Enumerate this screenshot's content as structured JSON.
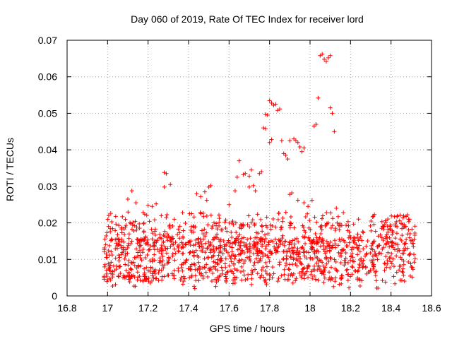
{
  "chart_data": {
    "type": "scatter",
    "title": "Day 060 of 2019, Rate Of TEC Index for receiver lord",
    "xlabel": "GPS time / hours",
    "ylabel": "ROTI / TECUs",
    "xlim": [
      16.8,
      18.6
    ],
    "ylim": [
      0,
      0.07
    ],
    "xticks": [
      "16.8",
      "17",
      "17.2",
      "17.4",
      "17.6",
      "17.8",
      "18",
      "18.2",
      "18.4",
      "18.6"
    ],
    "yticks": [
      "0",
      "0.01",
      "0.02",
      "0.03",
      "0.04",
      "0.05",
      "0.06",
      "0.07"
    ],
    "grid": true,
    "marker": "+",
    "color": "#ff0000",
    "x_range_data": [
      16.98,
      18.52
    ],
    "series": [
      {
        "points": [
          [
            17.28,
            0.0338
          ],
          [
            17.29,
            0.0335
          ],
          [
            17.31,
            0.0305
          ],
          [
            17.28,
            0.0298
          ],
          [
            17.1,
            0.0265
          ],
          [
            17.12,
            0.0288
          ],
          [
            17.14,
            0.0255
          ],
          [
            17.2,
            0.0248
          ],
          [
            17.22,
            0.0245
          ],
          [
            17.24,
            0.0252
          ],
          [
            17.44,
            0.028
          ],
          [
            17.46,
            0.0272
          ],
          [
            17.48,
            0.0285
          ],
          [
            17.5,
            0.0298
          ],
          [
            17.51,
            0.0302
          ],
          [
            17.49,
            0.0262
          ],
          [
            17.6,
            0.025
          ],
          [
            17.63,
            0.0288
          ],
          [
            17.64,
            0.0325
          ],
          [
            17.65,
            0.037
          ],
          [
            17.67,
            0.0332
          ],
          [
            17.68,
            0.0335
          ],
          [
            17.7,
            0.0328
          ],
          [
            17.71,
            0.0345
          ],
          [
            17.7,
            0.0298
          ],
          [
            17.72,
            0.0302
          ],
          [
            17.73,
            0.0288
          ],
          [
            17.75,
            0.0335
          ],
          [
            17.76,
            0.034
          ],
          [
            17.77,
            0.046
          ],
          [
            17.78,
            0.0458
          ],
          [
            17.78,
            0.0497
          ],
          [
            17.79,
            0.0495
          ],
          [
            17.8,
            0.0535
          ],
          [
            17.81,
            0.0528
          ],
          [
            17.82,
            0.0522
          ],
          [
            17.83,
            0.0525
          ],
          [
            17.84,
            0.0508
          ],
          [
            17.85,
            0.0512
          ],
          [
            17.8,
            0.042
          ],
          [
            17.81,
            0.0428
          ],
          [
            17.86,
            0.0425
          ],
          [
            17.87,
            0.039
          ],
          [
            17.88,
            0.0385
          ],
          [
            17.89,
            0.0375
          ],
          [
            17.9,
            0.0425
          ],
          [
            17.92,
            0.043
          ],
          [
            17.93,
            0.0425
          ],
          [
            17.94,
            0.042
          ],
          [
            17.95,
            0.0408
          ],
          [
            17.96,
            0.0395
          ],
          [
            17.97,
            0.0405
          ],
          [
            17.9,
            0.0278
          ],
          [
            17.91,
            0.0282
          ],
          [
            17.94,
            0.0262
          ],
          [
            17.97,
            0.0255
          ],
          [
            17.99,
            0.0245
          ],
          [
            18.01,
            0.0262
          ],
          [
            18.02,
            0.0465
          ],
          [
            18.03,
            0.047
          ],
          [
            18.04,
            0.0542
          ],
          [
            18.05,
            0.0658
          ],
          [
            18.06,
            0.0662
          ],
          [
            18.07,
            0.0648
          ],
          [
            18.08,
            0.0642
          ],
          [
            18.09,
            0.0652
          ],
          [
            18.1,
            0.0658
          ],
          [
            18.1,
            0.0515
          ],
          [
            18.11,
            0.05
          ],
          [
            18.12,
            0.045
          ],
          [
            18.13,
            0.024
          ]
        ]
      }
    ]
  }
}
